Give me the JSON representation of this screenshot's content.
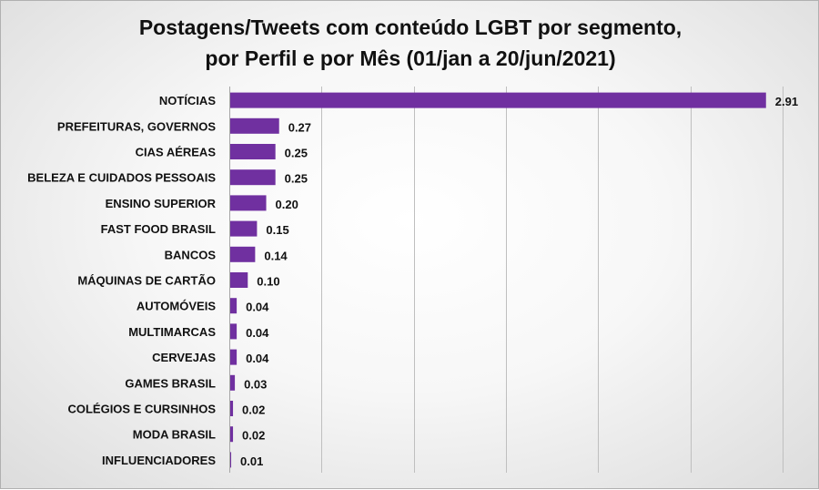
{
  "chart_data": {
    "type": "bar",
    "orientation": "horizontal",
    "title_lines": [
      "Postagens/Tweets com conteúdo LGBT por segmento,",
      "por Perfil e por Mês (01/jan a 20/jun/2021)"
    ],
    "categories": [
      "NOTÍCIAS",
      "PREFEITURAS, GOVERNOS",
      "CIAS AÉREAS",
      "BELEZA E CUIDADOS PESSOAIS",
      "ENSINO SUPERIOR",
      "FAST FOOD BRASIL",
      "BANCOS",
      "MÁQUINAS DE CARTÃO",
      "AUTOMÓVEIS",
      "MULTIMARCAS",
      "CERVEJAS",
      "GAMES BRASIL",
      "COLÉGIOS E CURSINHOS",
      "MODA BRASIL",
      "INFLUENCIADORES"
    ],
    "values": [
      2.91,
      0.27,
      0.25,
      0.25,
      0.2,
      0.15,
      0.14,
      0.1,
      0.04,
      0.04,
      0.04,
      0.03,
      0.02,
      0.02,
      0.01
    ],
    "value_labels": [
      "2.91",
      "0.27",
      "0.25",
      "0.25",
      "0.20",
      "0.15",
      "0.14",
      "0.10",
      "0.04",
      "0.04",
      "0.04",
      "0.03",
      "0.02",
      "0.02",
      "0.01"
    ],
    "xlim": [
      0,
      3
    ],
    "x_gridline_step": 0.5,
    "grid": true,
    "legend": "none",
    "bar_color": "#7030a0",
    "gridline_color": "#bfbfbf"
  }
}
